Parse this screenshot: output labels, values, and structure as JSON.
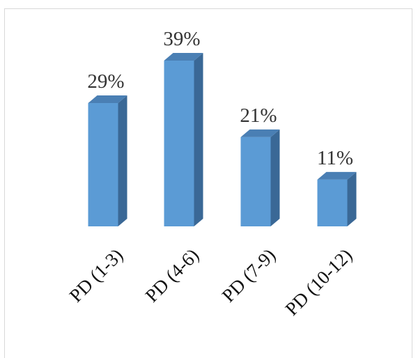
{
  "chart_data": {
    "type": "bar",
    "style": "3d-column",
    "categories": [
      "PD (1-3)",
      "PD (4-6)",
      "PD (7-9)",
      "PD (10-12)"
    ],
    "values": [
      29,
      39,
      21,
      11
    ],
    "data_labels": [
      "29%",
      "39%",
      "21%",
      "11%"
    ],
    "value_unit": "%",
    "title": "",
    "xlabel": "",
    "ylabel": "",
    "ylim": [
      0,
      39
    ],
    "grid": false,
    "legend": "none",
    "colors": {
      "front": "#5b9bd5",
      "side": "#3a6896",
      "top": "#4a7fb4"
    }
  }
}
